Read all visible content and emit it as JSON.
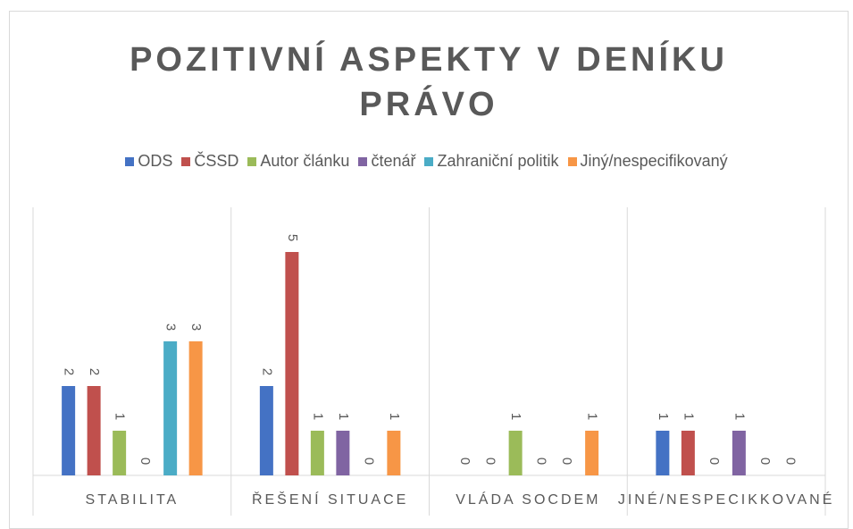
{
  "chart_data": {
    "type": "bar",
    "title": "POZITIVNÍ ASPEKTY V DENÍKU PRÁVO",
    "categories": [
      "STABILITA",
      "ŘEŠENÍ SITUACE",
      "VLÁDA SOCDEM",
      "JINÉ/NESPECIKKOVANÉ"
    ],
    "series": [
      {
        "name": "ODS",
        "color": "#4472c4",
        "values": [
          2,
          2,
          0,
          1
        ]
      },
      {
        "name": "ČSSD",
        "color": "#c0504d",
        "values": [
          2,
          5,
          0,
          1
        ]
      },
      {
        "name": "Autor článku",
        "color": "#9bbb59",
        "values": [
          1,
          1,
          1,
          0
        ]
      },
      {
        "name": "čtenář",
        "color": "#8064a2",
        "values": [
          0,
          1,
          0,
          1
        ]
      },
      {
        "name": "Zahraniční politik",
        "color": "#4bacc6",
        "values": [
          3,
          0,
          0,
          0
        ]
      },
      {
        "name": "Jiný/nespecifikovaný",
        "color": "#f79646",
        "values": [
          3,
          1,
          1,
          0
        ]
      }
    ],
    "ylim": [
      0,
      6
    ],
    "legend": "top",
    "data_labels": true
  }
}
